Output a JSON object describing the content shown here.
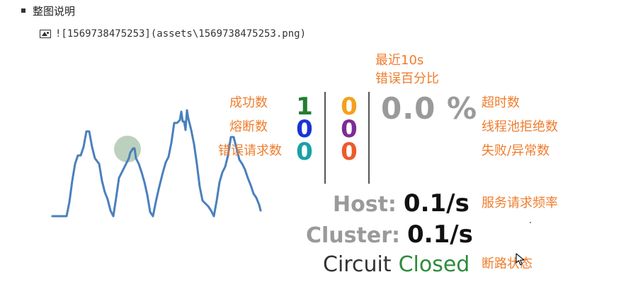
{
  "document": {
    "list_item_text": "整图说明",
    "image_markdown": "![1569738475253](assets\\1569738475253.png)"
  },
  "icons": {
    "bullet": "list-bullet-icon",
    "broken_image": "image-icon",
    "hand": "hand-cursor-icon",
    "mouse": "mouse-pointer-icon"
  },
  "figure": {
    "annotations": {
      "recent_error_pct_line1": "最近10s",
      "recent_error_pct_line2": "错误百分比",
      "success_count": "成功数",
      "circuit_broken_count": "熔断数",
      "bad_request_count": "错误请求数",
      "timeout_count": "超时数",
      "threadpool_rejected_count": "线程池拒绝数",
      "failure_exception_count": "失败/异常数",
      "service_request_rate": "服务请求频率",
      "circuit_status": "断路状态"
    },
    "counts": {
      "success": "1",
      "short_circuited": "0",
      "bad_request": "0",
      "timeout": "0",
      "rejected": "0",
      "failure": "0"
    },
    "error_percentage": "0.0 %",
    "host_rate": {
      "label": "Host:",
      "value": "0.1/s"
    },
    "cluster_rate": {
      "label": "Cluster:",
      "value": "0.1/s"
    },
    "circuit": {
      "label": "Circuit",
      "state": "Closed"
    },
    "colors": {
      "annotation_orange": "#ef7d2e",
      "success_green": "#1f7f2f",
      "short_circuited_blue": "#1a34d6",
      "bad_request_teal": "#17a2a6",
      "timeout_orange": "#f4a11b",
      "rejected_purple": "#7b2d95",
      "failure_red": "#ef5a2a",
      "sparkline_blue": "#4a80bd",
      "health_circle": "#b7cfbb",
      "closed_green": "#2e8b3a"
    }
  }
}
